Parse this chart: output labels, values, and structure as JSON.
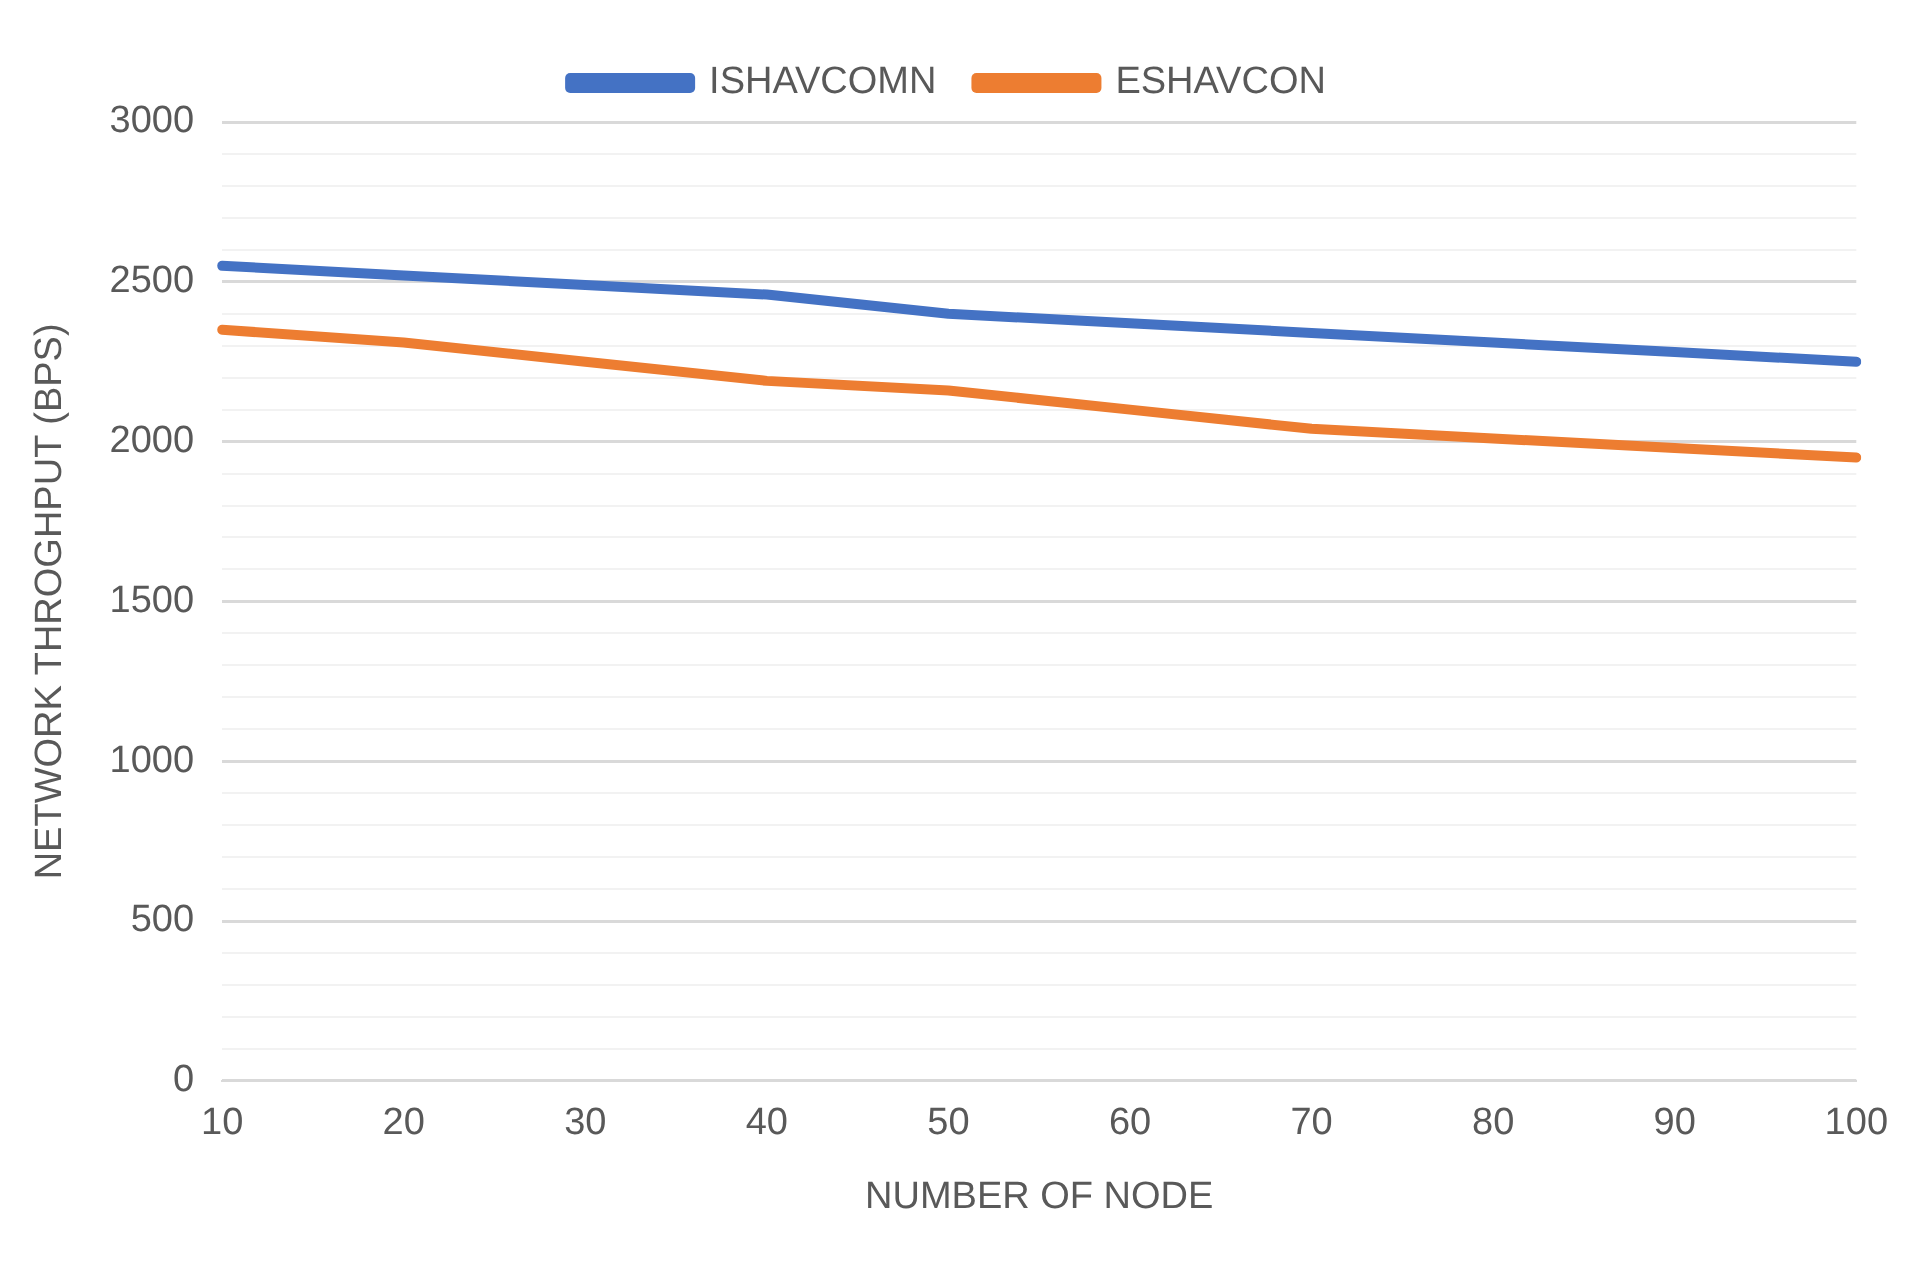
{
  "chart_data": {
    "type": "line",
    "xlabel": "NUMBER OF NODE",
    "ylabel": "NETWORK THROGHPUT (BPS)",
    "categories": [
      "10",
      "20",
      "30",
      "40",
      "50",
      "60",
      "70",
      "80",
      "90",
      "100"
    ],
    "series": [
      {
        "name": "ISHAVCOMN",
        "color": "#4472c4",
        "values": [
          2550,
          2520,
          2490,
          2460,
          2400,
          2370,
          2340,
          2310,
          2280,
          2250
        ]
      },
      {
        "name": "ESHAVCON",
        "color": "#ed7d31",
        "values": [
          2350,
          2310,
          2250,
          2190,
          2160,
          2100,
          2040,
          2010,
          1980,
          1950
        ]
      }
    ],
    "ylim": [
      0,
      3000
    ],
    "yticks": [
      0,
      {
        "value": 100,
        "label": null
      },
      {
        "value": 200,
        "label": null
      },
      {
        "value": 300,
        "label": null
      },
      {
        "value": 400,
        "label": null
      },
      500,
      {
        "value": 600,
        "label": null
      },
      {
        "value": 700,
        "label": null
      },
      {
        "value": 800,
        "label": null
      },
      {
        "value": 900,
        "label": null
      },
      1000,
      {
        "value": 1100,
        "label": null
      },
      {
        "value": 1200,
        "label": null
      },
      {
        "value": 1300,
        "label": null
      },
      {
        "value": 1400,
        "label": null
      },
      1500,
      {
        "value": 1600,
        "label": null
      },
      {
        "value": 1700,
        "label": null
      },
      {
        "value": 1800,
        "label": null
      },
      {
        "value": 1900,
        "label": null
      },
      2000,
      {
        "value": 2100,
        "label": null
      },
      {
        "value": 2200,
        "label": null
      },
      {
        "value": 2300,
        "label": null
      },
      {
        "value": 2400,
        "label": null
      },
      2500,
      {
        "value": 2600,
        "label": null
      },
      {
        "value": 2700,
        "label": null
      },
      {
        "value": 2800,
        "label": null
      },
      {
        "value": 2900,
        "label": null
      },
      3000
    ],
    "grid": "y",
    "legend": "top",
    "marker": "none",
    "line_style": "solid"
  }
}
